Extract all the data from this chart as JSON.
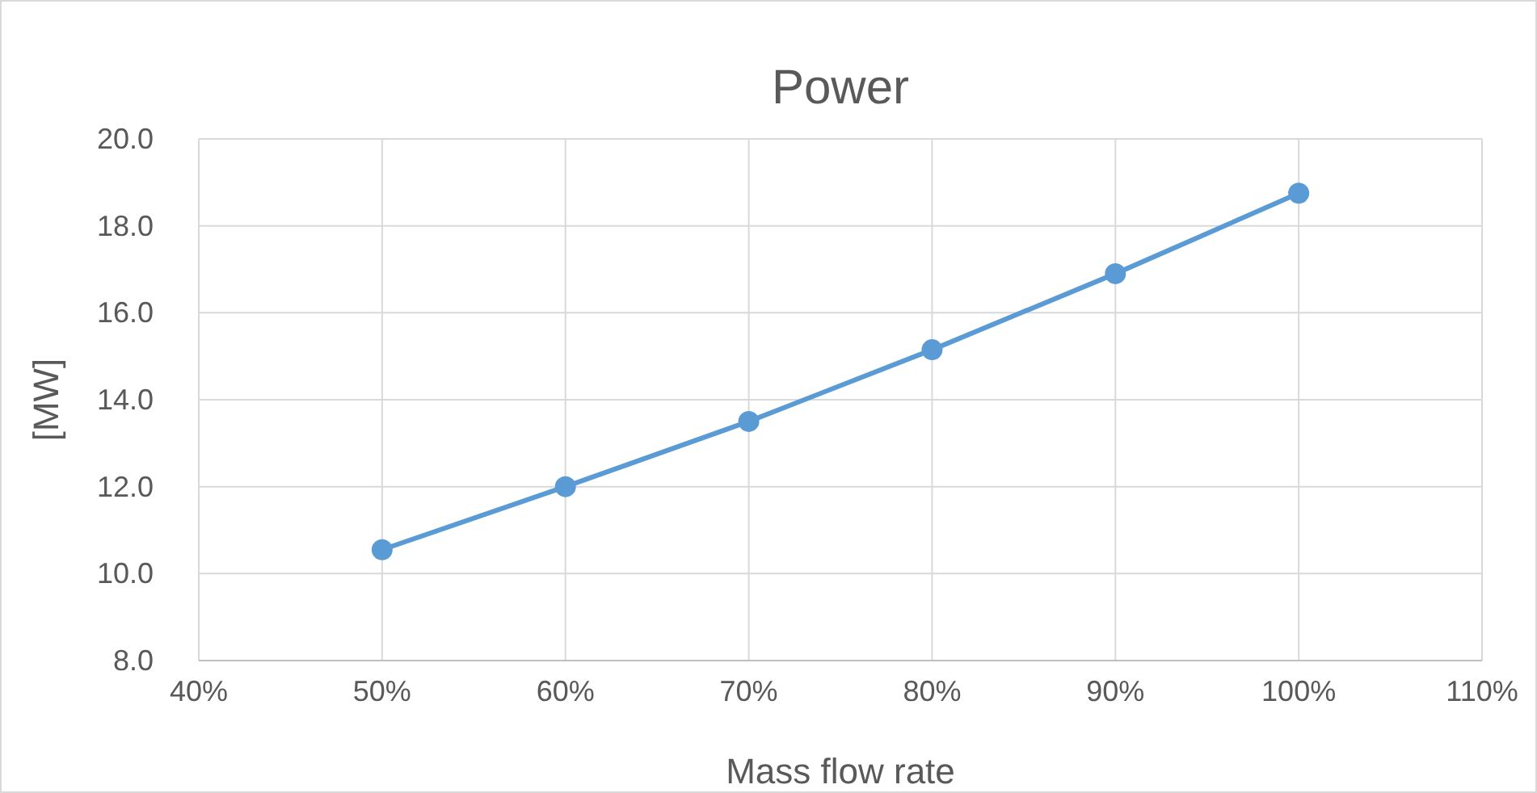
{
  "chart_data": {
    "type": "line",
    "title": "Power",
    "xlabel": "Mass flow rate",
    "ylabel": "[MW]",
    "x": [
      50,
      60,
      70,
      80,
      90,
      100
    ],
    "series": [
      {
        "color": "#5b9bd5",
        "values": [
          10.55,
          12.0,
          13.5,
          15.15,
          16.9,
          18.75
        ]
      }
    ],
    "xlim": [
      40,
      110
    ],
    "xticks": [
      {
        "value": 40,
        "label": "40%"
      },
      {
        "value": 50,
        "label": "50%"
      },
      {
        "value": 60,
        "label": "60%"
      },
      {
        "value": 70,
        "label": "70%"
      },
      {
        "value": 80,
        "label": "80%"
      },
      {
        "value": 90,
        "label": "90%"
      },
      {
        "value": 100,
        "label": "100%"
      },
      {
        "value": 110,
        "label": "110%"
      }
    ],
    "ylim": [
      8,
      20
    ],
    "yticks": [
      {
        "value": 8,
        "label": "8.0"
      },
      {
        "value": 10,
        "label": "10.0"
      },
      {
        "value": 12,
        "label": "12.0"
      },
      {
        "value": 14,
        "label": "14.0"
      },
      {
        "value": 16,
        "label": "16.0"
      },
      {
        "value": 18,
        "label": "18.0"
      },
      {
        "value": 20,
        "label": "20.0"
      }
    ],
    "grid": true,
    "marker": "circle",
    "line_style": "solid"
  }
}
